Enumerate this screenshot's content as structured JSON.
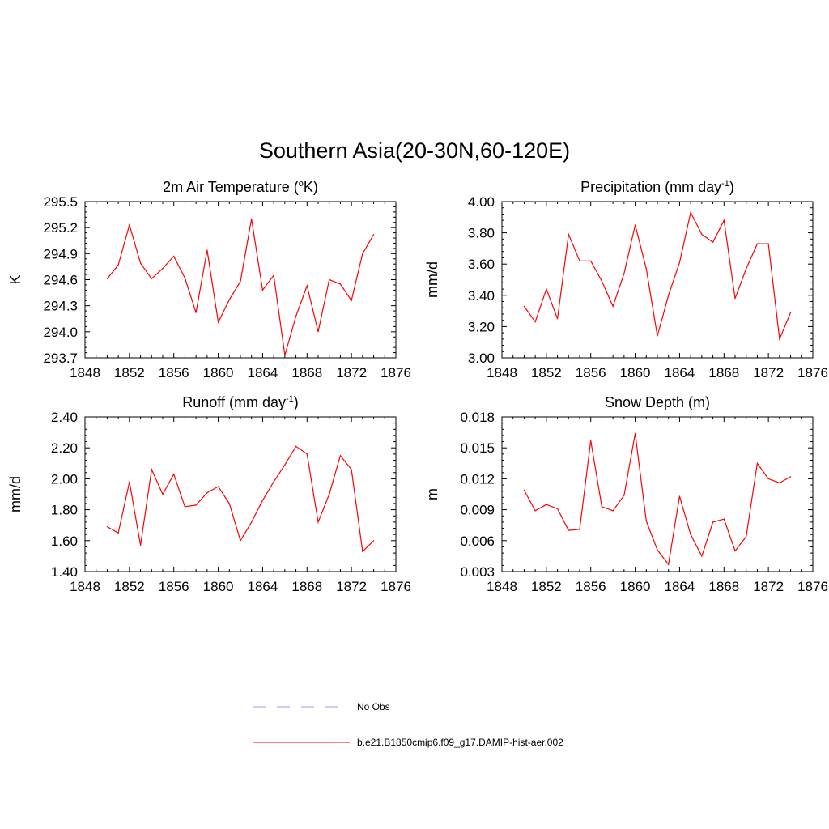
{
  "title": "Southern Asia(20-30N,60-120E)",
  "chart_data": [
    {
      "type": "line",
      "title_main": "2m Air Temperature (",
      "title_sup": "o",
      "title_end": "K)",
      "ylabel": "K",
      "xlim": [
        1848,
        1876
      ],
      "ylim": [
        293.7,
        295.5
      ],
      "xticks": [
        1848,
        1852,
        1856,
        1860,
        1864,
        1868,
        1872,
        1876
      ],
      "yticks": [
        "293.7",
        "294.0",
        "294.3",
        "294.6",
        "294.9",
        "295.2",
        "295.5"
      ],
      "series": [
        {
          "color": "#ff0000",
          "x": [
            1850,
            1851,
            1852,
            1853,
            1854,
            1855,
            1856,
            1857,
            1858,
            1859,
            1860,
            1861,
            1862,
            1863,
            1864,
            1865,
            1866,
            1867,
            1868,
            1869,
            1870,
            1871,
            1872,
            1873,
            1874
          ],
          "values": [
            294.61,
            294.77,
            295.23,
            294.79,
            294.61,
            294.73,
            294.87,
            294.62,
            294.22,
            294.94,
            294.11,
            294.37,
            294.58,
            295.3,
            294.48,
            294.65,
            293.73,
            294.18,
            294.53,
            294.0,
            294.6,
            294.55,
            294.36,
            294.9,
            295.12
          ]
        }
      ]
    },
    {
      "type": "line",
      "title_main": "Precipitation (mm day",
      "title_sup": "-1",
      "title_end": ")",
      "ylabel": "mm/d",
      "xlim": [
        1848,
        1876
      ],
      "ylim": [
        3.0,
        4.0
      ],
      "xticks": [
        1848,
        1852,
        1856,
        1860,
        1864,
        1868,
        1872,
        1876
      ],
      "yticks": [
        "3.00",
        "3.20",
        "3.40",
        "3.60",
        "3.80",
        "4.00"
      ],
      "series": [
        {
          "color": "#ff0000",
          "x": [
            1850,
            1851,
            1852,
            1853,
            1854,
            1855,
            1856,
            1857,
            1858,
            1859,
            1860,
            1861,
            1862,
            1863,
            1864,
            1865,
            1866,
            1867,
            1868,
            1869,
            1870,
            1871,
            1872,
            1873,
            1874
          ],
          "values": [
            3.33,
            3.23,
            3.44,
            3.25,
            3.79,
            3.62,
            3.62,
            3.49,
            3.33,
            3.54,
            3.85,
            3.57,
            3.14,
            3.4,
            3.61,
            3.93,
            3.79,
            3.74,
            3.88,
            3.38,
            3.57,
            3.73,
            3.73,
            3.12,
            3.29
          ]
        }
      ]
    },
    {
      "type": "line",
      "title_main": "Runoff (mm day",
      "title_sup": "-1",
      "title_end": ")",
      "ylabel": "mm/d",
      "xlim": [
        1848,
        1876
      ],
      "ylim": [
        1.4,
        2.4
      ],
      "xticks": [
        1848,
        1852,
        1856,
        1860,
        1864,
        1868,
        1872,
        1876
      ],
      "yticks": [
        "1.40",
        "1.60",
        "1.80",
        "2.00",
        "2.20",
        "2.40"
      ],
      "series": [
        {
          "color": "#ff0000",
          "x": [
            1850,
            1851,
            1852,
            1853,
            1854,
            1855,
            1856,
            1857,
            1858,
            1859,
            1860,
            1861,
            1862,
            1863,
            1864,
            1865,
            1866,
            1867,
            1868,
            1869,
            1870,
            1871,
            1872,
            1873,
            1874
          ],
          "values": [
            1.69,
            1.65,
            1.98,
            1.57,
            2.06,
            1.9,
            2.03,
            1.82,
            1.83,
            1.91,
            1.95,
            1.84,
            1.6,
            1.72,
            1.86,
            1.98,
            2.09,
            2.21,
            2.16,
            1.72,
            1.9,
            2.15,
            2.06,
            1.53,
            1.6
          ]
        }
      ]
    },
    {
      "type": "line",
      "title_main": "Snow Depth (m)",
      "title_sup": "",
      "title_end": "",
      "ylabel": "m",
      "xlim": [
        1848,
        1876
      ],
      "ylim": [
        0.003,
        0.018
      ],
      "xticks": [
        1848,
        1852,
        1856,
        1860,
        1864,
        1868,
        1872,
        1876
      ],
      "yticks": [
        "0.003",
        "0.006",
        "0.009",
        "0.012",
        "0.015",
        "0.018"
      ],
      "series": [
        {
          "color": "#ff0000",
          "x": [
            1850,
            1851,
            1852,
            1853,
            1854,
            1855,
            1856,
            1857,
            1858,
            1859,
            1860,
            1861,
            1862,
            1863,
            1864,
            1865,
            1866,
            1867,
            1868,
            1869,
            1870,
            1871,
            1872,
            1873,
            1874
          ],
          "values": [
            0.0109,
            0.0089,
            0.0095,
            0.0091,
            0.007,
            0.0071,
            0.0157,
            0.0093,
            0.0089,
            0.0104,
            0.0164,
            0.0079,
            0.0051,
            0.0037,
            0.0103,
            0.0066,
            0.0045,
            0.0078,
            0.0081,
            0.005,
            0.0064,
            0.0135,
            0.012,
            0.0116,
            0.0122
          ]
        }
      ]
    }
  ],
  "legend": [
    {
      "label": "No Obs",
      "color": "#9999ff",
      "style": "dashed"
    },
    {
      "label": "b.e21.B1850cmip6.f09_g17.DAMIP-hist-aer.002",
      "color": "#ff0000",
      "style": "solid"
    }
  ]
}
